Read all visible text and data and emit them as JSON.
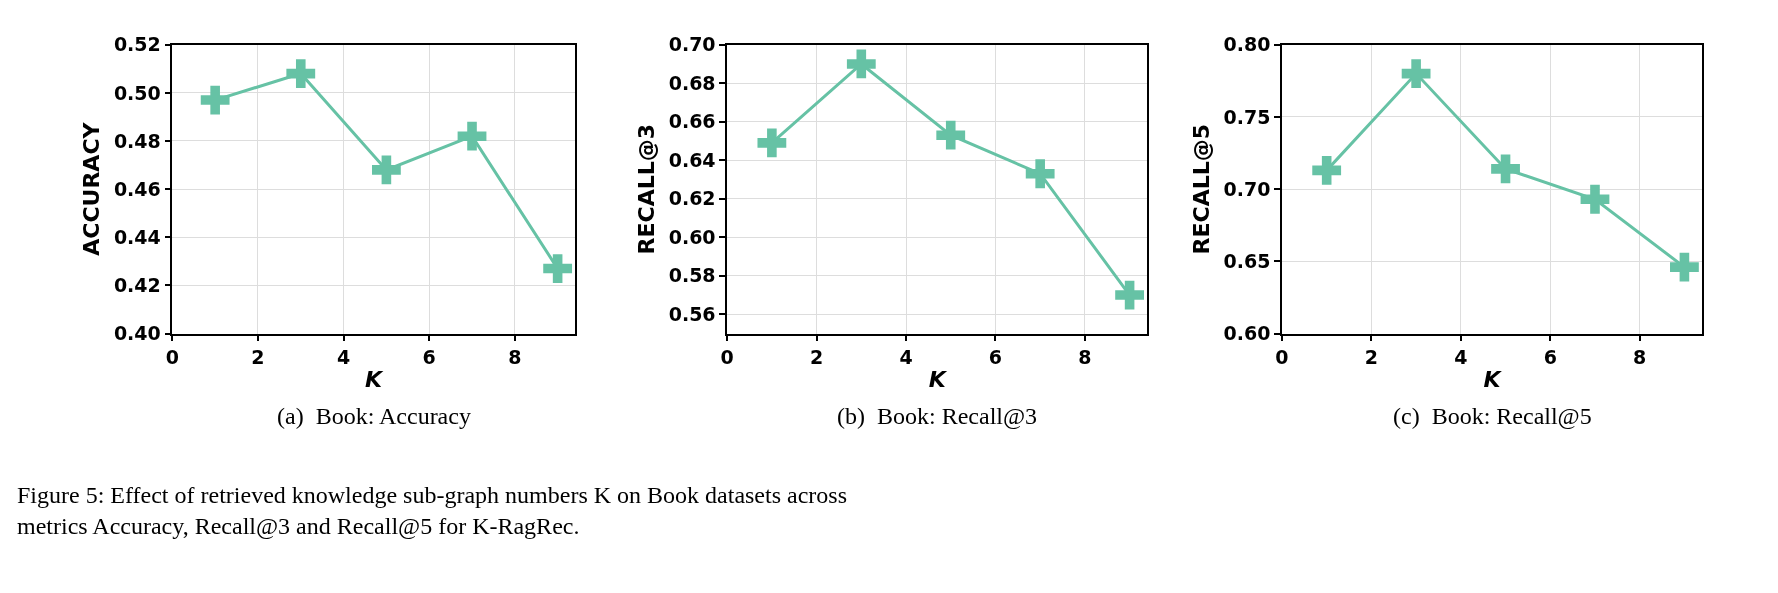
{
  "chart_data": [
    {
      "type": "line",
      "xlabel": "K",
      "ylabel": "ACCURACY",
      "x": [
        1,
        3,
        5,
        7,
        9
      ],
      "series": [
        {
          "color": "#66c2a5",
          "values": [
            0.497,
            0.508,
            0.468,
            0.482,
            0.427
          ]
        }
      ],
      "xlim": [
        0,
        9.4
      ],
      "xticks": [
        0,
        2,
        4,
        6,
        8
      ],
      "ylim": [
        0.4,
        0.52
      ],
      "yticks": [
        {
          "value": 0.4,
          "label": "0.40"
        },
        0.42,
        0.44,
        0.46,
        0.48,
        {
          "value": 0.5,
          "label": "0.50"
        },
        0.52
      ],
      "grid": true,
      "marker": "cross",
      "line_style": "solid",
      "annotations": [
        "(a)  Book: Accuracy",
        "Figure 5: Effect of retrieved knowledge sub-graph numbers K on Book datasets across\nmetrics Accuracy, Recall@3 and Recall@5 for K-RagRec."
      ]
    },
    {
      "type": "line",
      "xlabel": "K",
      "ylabel": "RECALL@3",
      "x": [
        1,
        3,
        5,
        7,
        9
      ],
      "series": [
        {
          "color": "#66c2a5",
          "values": [
            0.649,
            0.69,
            0.653,
            0.633,
            0.57
          ]
        }
      ],
      "xlim": [
        0,
        9.4
      ],
      "xticks": [
        0,
        2,
        4,
        6,
        8
      ],
      "ylim": [
        0.55,
        0.7
      ],
      "yticks": [
        0.56,
        0.58,
        {
          "value": 0.6,
          "label": "0.60"
        },
        0.62,
        0.64,
        0.66,
        0.68,
        {
          "value": 0.7,
          "label": "0.70"
        }
      ],
      "grid": true,
      "marker": "cross",
      "line_style": "solid",
      "annotations": [
        "(b)  Book: Recall@3"
      ]
    },
    {
      "type": "line",
      "xlabel": "K",
      "ylabel": "RECALL@5",
      "x": [
        1,
        3,
        5,
        7,
        9
      ],
      "series": [
        {
          "color": "#66c2a5",
          "values": [
            0.713,
            0.78,
            0.714,
            0.693,
            0.646
          ]
        }
      ],
      "xlim": [
        0,
        9.4
      ],
      "xticks": [
        0,
        2,
        4,
        6,
        8
      ],
      "ylim": [
        0.6,
        0.8
      ],
      "yticks": [
        {
          "value": 0.6,
          "label": "0.60"
        },
        0.65,
        {
          "value": 0.7,
          "label": "0.70"
        },
        0.75,
        {
          "value": 0.8,
          "label": "0.80"
        }
      ],
      "grid": true,
      "marker": "cross",
      "line_style": "solid",
      "annotations": [
        "(c)  Book: Recall@5"
      ]
    }
  ]
}
